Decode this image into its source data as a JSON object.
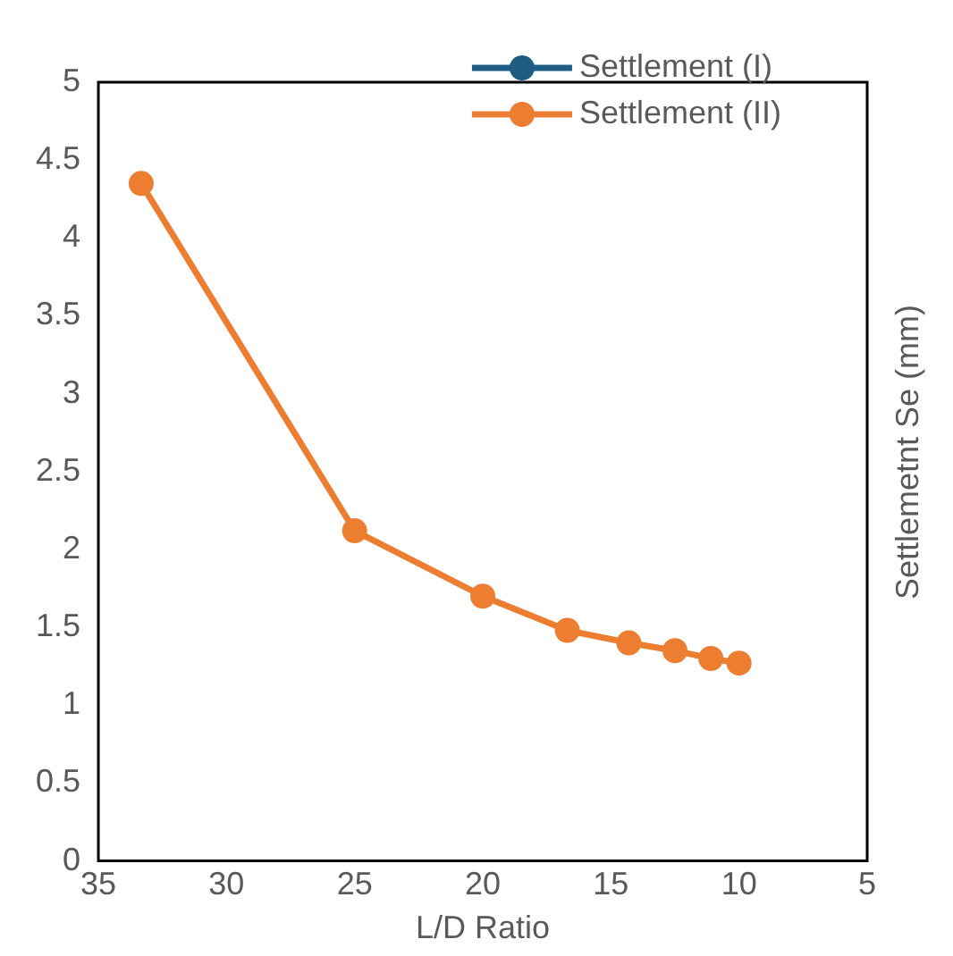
{
  "chart_data": {
    "type": "line",
    "xlabel": "L/D Ratio",
    "ylabel": "Settlemetnt Se (mm)",
    "x": [
      33.33,
      25,
      20,
      16.7,
      14.3,
      12.5,
      11.1,
      10
    ],
    "series": [
      {
        "name": "Settlement (I)",
        "color": "#1f5c84",
        "values": [
          null,
          null,
          null,
          null,
          null,
          null,
          null,
          null
        ]
      },
      {
        "name": "Settlement (II)",
        "color": "#ed7d31",
        "values": [
          4.35,
          2.12,
          1.7,
          1.48,
          1.4,
          1.35,
          1.3,
          1.27
        ]
      }
    ],
    "xlim": [
      35,
      5
    ],
    "xticks": [
      35,
      30,
      25,
      20,
      15,
      10,
      5
    ],
    "ylim": [
      0,
      5
    ],
    "yticks": [
      0,
      0.5,
      1,
      1.5,
      2,
      2.5,
      3,
      3.5,
      4,
      4.5,
      5
    ],
    "grid": false,
    "legend": "top right",
    "marker": "circle",
    "line_style": "solid"
  }
}
